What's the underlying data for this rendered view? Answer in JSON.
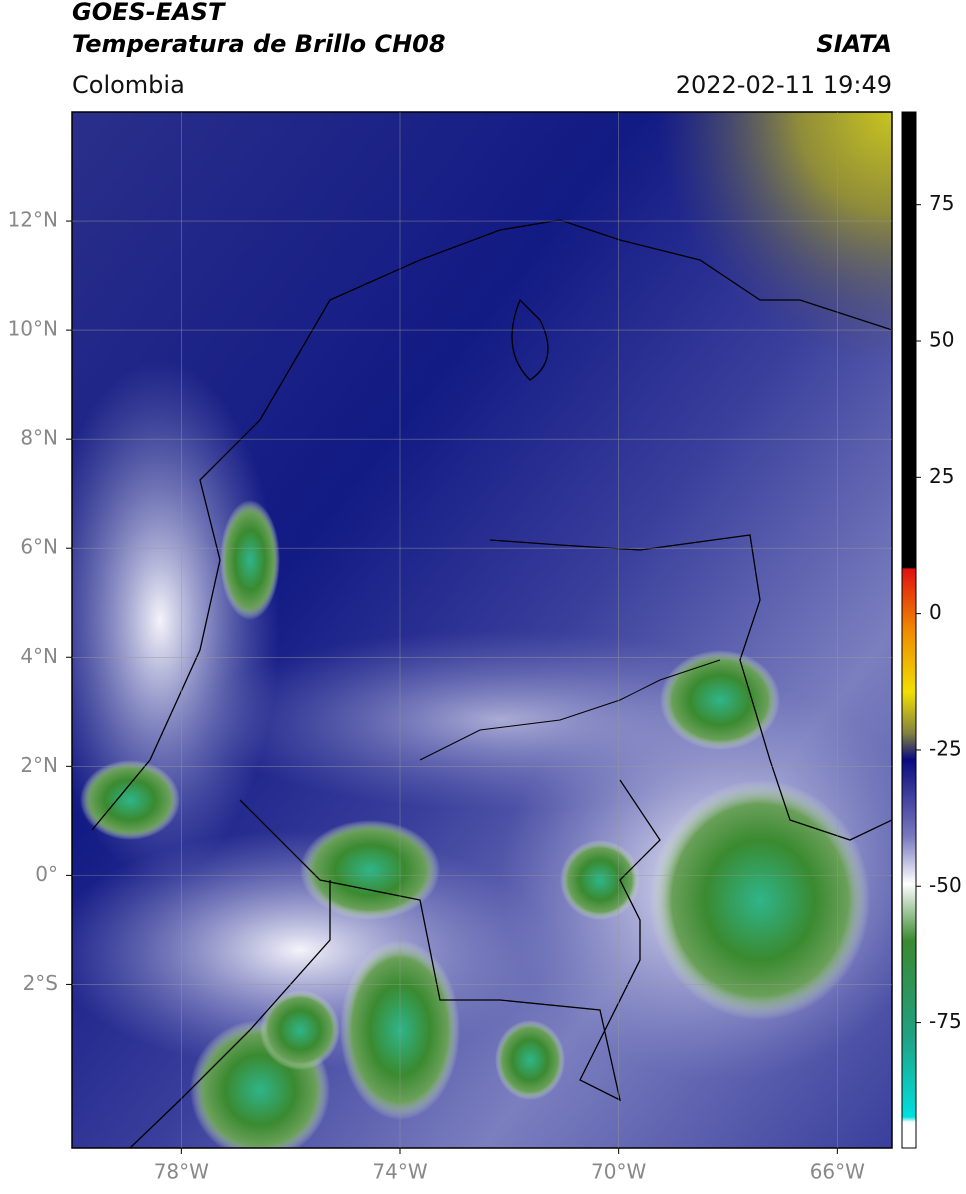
{
  "header": {
    "title": "GOES-EAST",
    "subtitle": "Temperatura de Brillo CH08",
    "source": "SIATA",
    "region": "Colombia",
    "datetime": "2022-02-11 19:49"
  },
  "map": {
    "xlim": [
      -80,
      -65
    ],
    "ylim": [
      -5,
      14
    ],
    "xticks": [
      {
        "value": -78,
        "label": "78°W"
      },
      {
        "value": -74,
        "label": "74°W"
      },
      {
        "value": -70,
        "label": "70°W"
      },
      {
        "value": -66,
        "label": "66°W"
      }
    ],
    "yticks": [
      {
        "value": 12,
        "label": "12°N"
      },
      {
        "value": 10,
        "label": "10°N"
      },
      {
        "value": 8,
        "label": "8°N"
      },
      {
        "value": 6,
        "label": "6°N"
      },
      {
        "value": 4,
        "label": "4°N"
      },
      {
        "value": 2,
        "label": "2°N"
      },
      {
        "value": 0,
        "label": "0°"
      },
      {
        "value": -2,
        "label": "2°S"
      }
    ],
    "grid": true
  },
  "colorbar": {
    "lim": [
      -98,
      92
    ],
    "ticks": [
      75,
      50,
      25,
      0,
      -25,
      -50,
      -75
    ]
  }
}
